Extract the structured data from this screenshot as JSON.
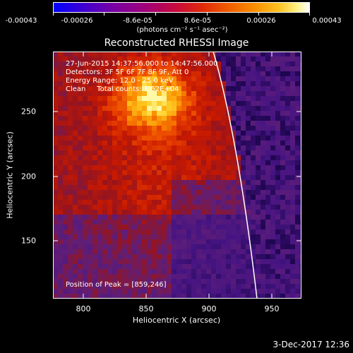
{
  "colorbar": {
    "labels": [
      "-0.00043",
      "-0.00026",
      "-8.6e-05",
      "8.6e-05",
      "0.00026",
      "0.00043"
    ],
    "units": "(photons cm⁻² s⁻¹ asec⁻²)"
  },
  "title": "Reconstructed RHESSI Image",
  "info": {
    "time": "27-Jun-2015 14:37:56.000 to 14:47:56.000",
    "detectors": "Detectors: 3F 5F 6F 7F 8F 9F, Att 0",
    "energy": "Energy Range: 12.0 - 25.0 keV",
    "clean": "Clean     Total counts: 1.62E+04"
  },
  "peak": "Position of Peak = [859,246]",
  "axes": {
    "x_ticks": [
      "800",
      "850",
      "900",
      "950"
    ],
    "y_ticks": [
      "250",
      "200",
      "150"
    ],
    "xlabel": "Heliocentric X (arcsec)",
    "ylabel": "Heliocentric Y (arcsec)"
  },
  "timestamp": "3-Dec-2017 12:36",
  "colors": {
    "background": "#000000",
    "limb": "#ffffff"
  }
}
